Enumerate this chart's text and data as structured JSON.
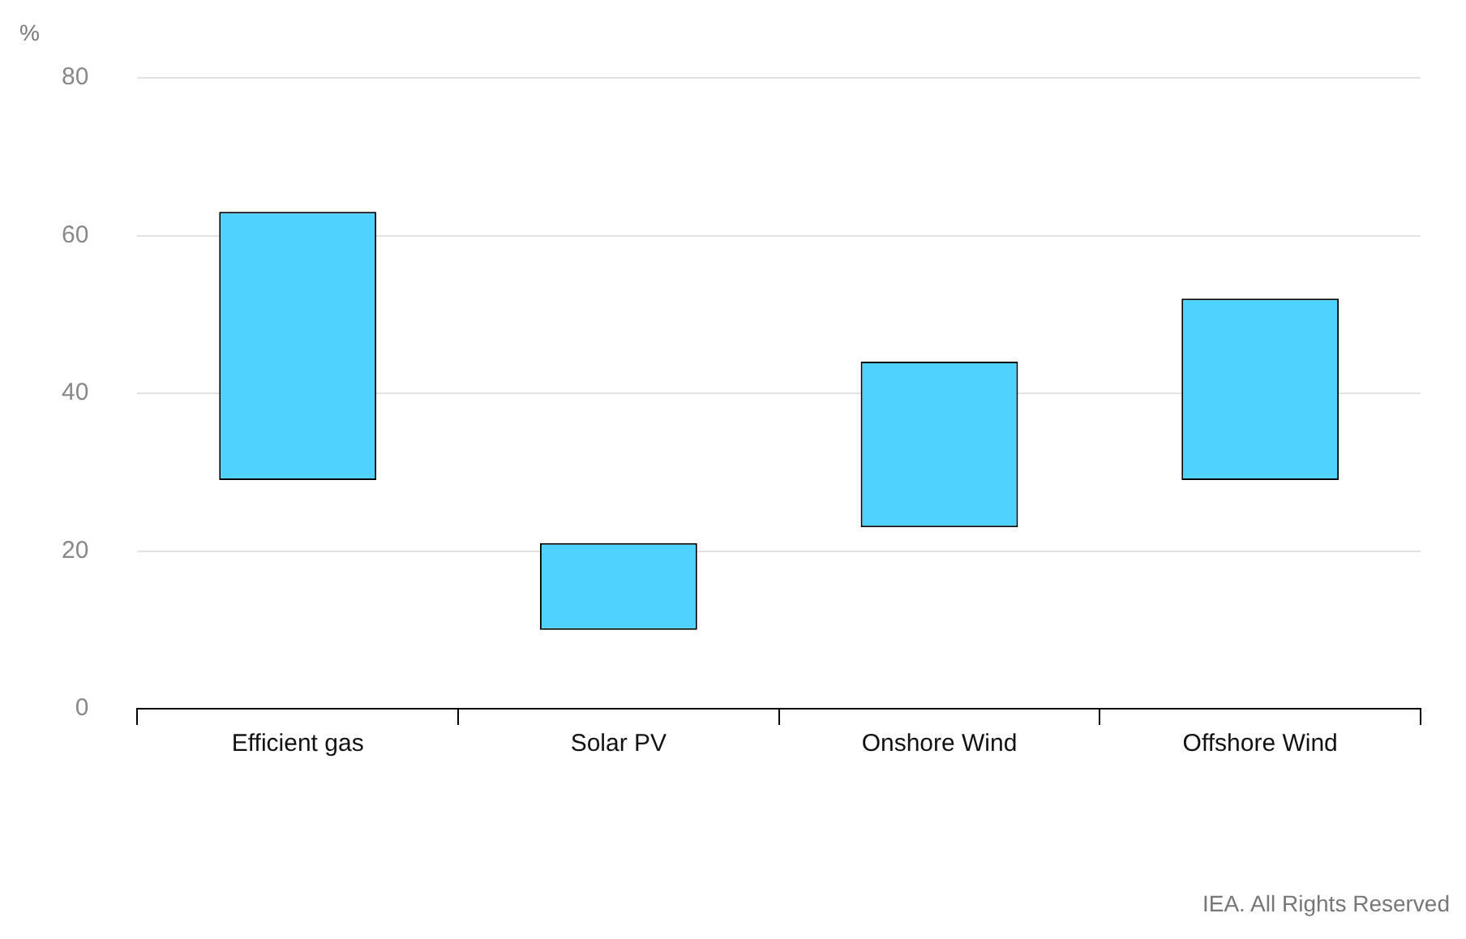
{
  "chart_data": {
    "type": "bar",
    "ylabel": "%",
    "categories": [
      "Efficient gas",
      "Solar PV",
      "Onshore Wind",
      "Offshore Wind"
    ],
    "values": [
      34,
      11,
      21,
      23
    ],
    "base": [
      29,
      10,
      23,
      29
    ],
    "color": "#50d2fe",
    "ylim": [
      0,
      80
    ],
    "yticks": [
      0,
      20,
      40,
      60,
      80
    ],
    "grid": "y",
    "legend": false,
    "annotations": [
      "IEA. All Rights Reserved"
    ]
  }
}
